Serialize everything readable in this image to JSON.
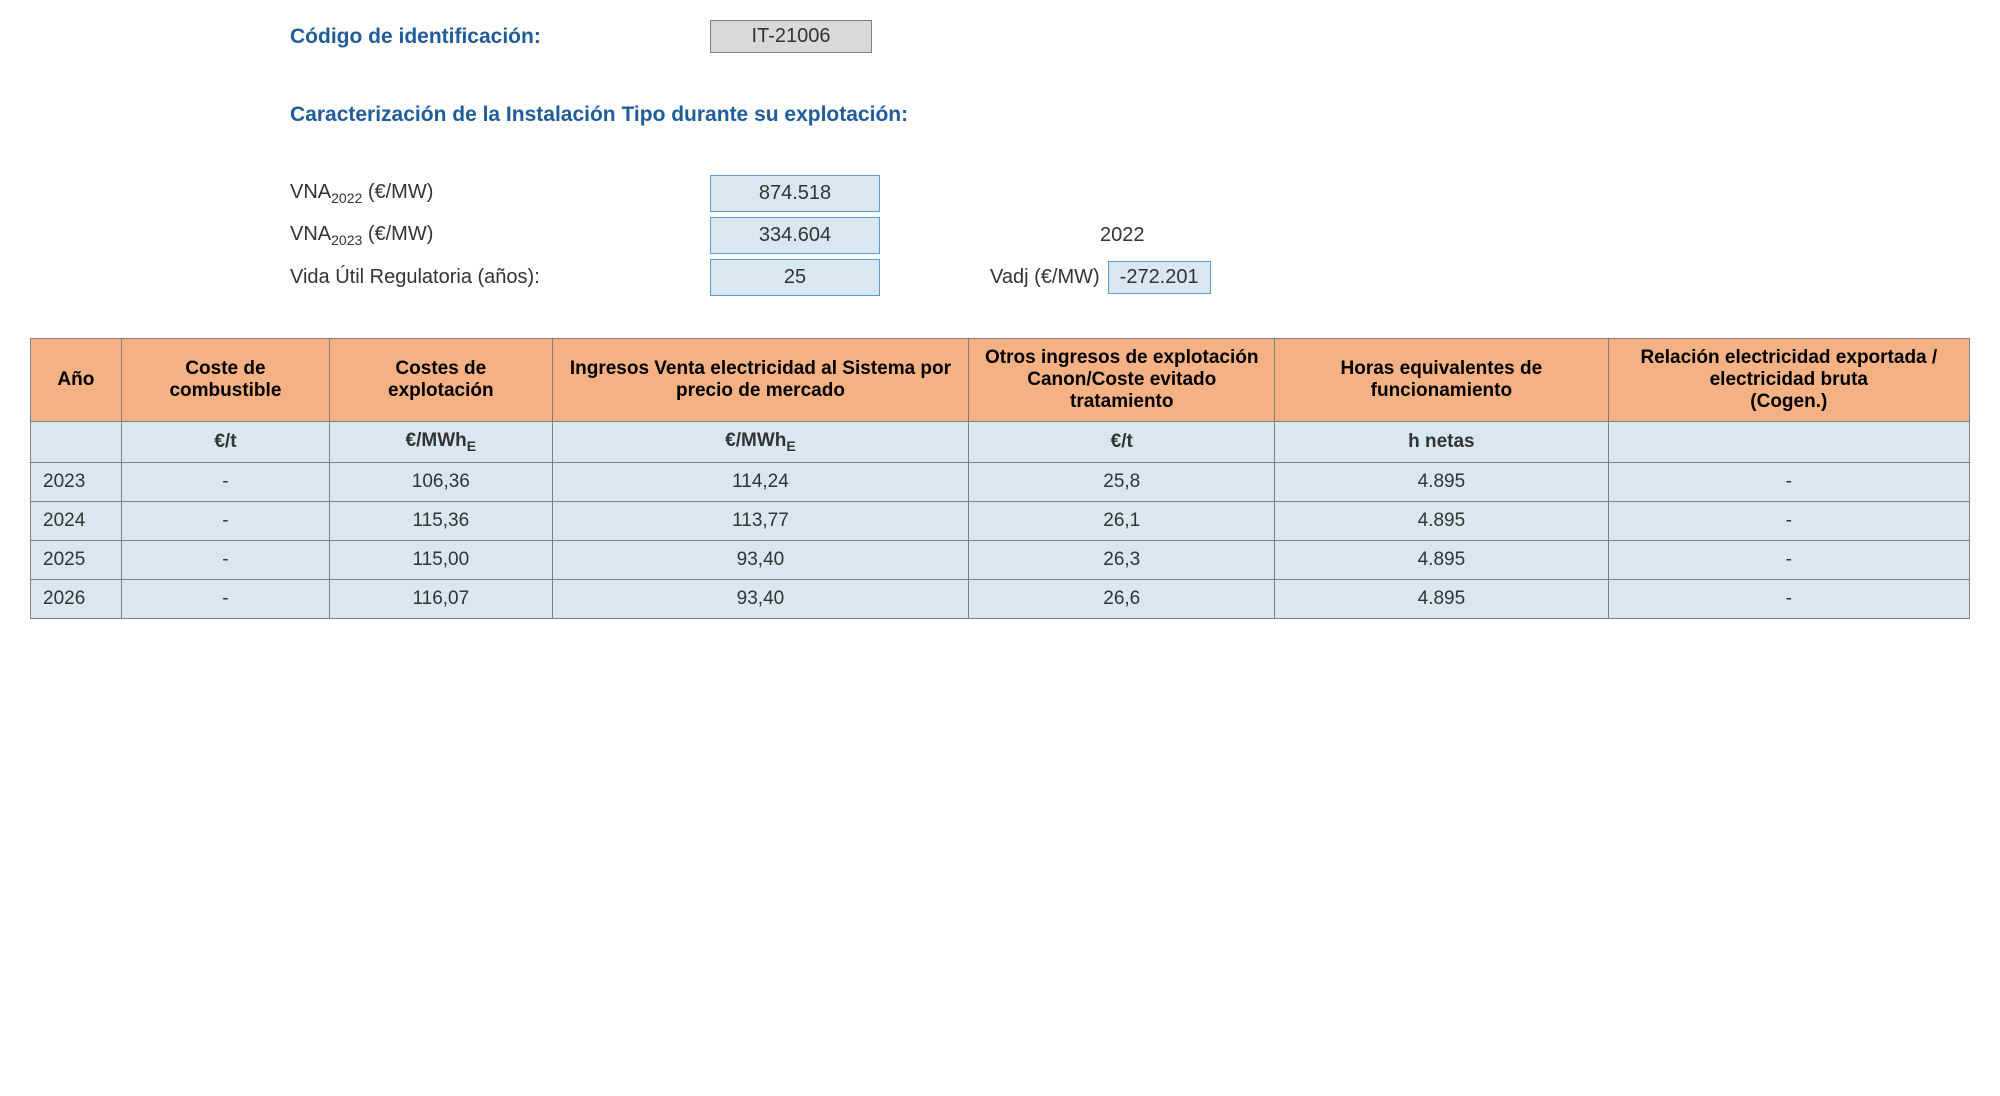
{
  "header": {
    "code_label": "Código de identificación:",
    "code_value": "IT-21006",
    "section_title": "Caracterización de la Instalación Tipo durante su explotación:"
  },
  "params": {
    "vna2022_label_prefix": "VNA",
    "vna2022_sub": "2022",
    "vna2022_unit": " (€/MW)",
    "vna2022_value": "874.518",
    "vna2023_label_prefix": "VNA",
    "vna2023_sub": "2023",
    "vna2023_unit": " (€/MW)",
    "vna2023_value": "334.604",
    "year_right": "2022",
    "vida_label": "Vida Útil Regulatoria (años):",
    "vida_value": "25",
    "vadj_label": "Vadj (€/MW)",
    "vadj_value": "-272.201"
  },
  "table": {
    "columns": [
      "Año",
      "Coste de combustible",
      "Costes de explotación",
      "Ingresos Venta electricidad al Sistema por precio de mercado",
      "Otros ingresos de explotación Canon/Coste evitado tratamiento",
      "Horas equivalentes de funcionamiento",
      "Relación electricidad exportada / electricidad bruta\n(Cogen.)"
    ],
    "units": [
      "",
      "€/t",
      "€/MWh_E",
      "€/MWh_E",
      "€/t",
      "h netas",
      ""
    ],
    "rows": [
      [
        "2023",
        "-",
        "106,36",
        "114,24",
        "25,8",
        "4.895",
        "-"
      ],
      [
        "2024",
        "-",
        "115,36",
        "113,77",
        "26,1",
        "4.895",
        "-"
      ],
      [
        "2025",
        "-",
        "115,00",
        "93,40",
        "26,3",
        "4.895",
        "-"
      ],
      [
        "2026",
        "-",
        "116,07",
        "93,40",
        "26,6",
        "4.895",
        "-"
      ]
    ],
    "col_widths": [
      "60px",
      "150px",
      "160px",
      "300px",
      "220px",
      "240px",
      "260px"
    ],
    "header_bg": "#f4b183",
    "cell_bg": "#d9e7f0",
    "border_color": "#808080"
  }
}
